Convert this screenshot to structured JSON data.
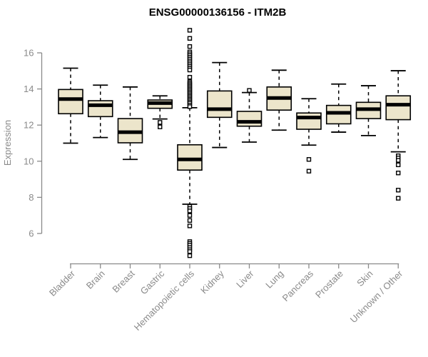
{
  "chart_data": {
    "type": "boxplot",
    "title": "ENSG00000136156 - ITM2B",
    "xlabel": "",
    "ylabel": "Expression",
    "ylim": [
      4.5,
      17.6
    ],
    "yticks": [
      6,
      8,
      10,
      12,
      14,
      16
    ],
    "grid": false,
    "legend": "none",
    "categories": [
      "Bladder",
      "Brain",
      "Breast",
      "Gastric",
      "Hematopoietic cells",
      "Kidney",
      "Liver",
      "Lung",
      "Pancreas",
      "Prostate",
      "Skin",
      "Unknown / Other"
    ],
    "boxes": [
      {
        "category": "Bladder",
        "whisker_low": 11.0,
        "q1": 12.63,
        "median": 13.44,
        "q3": 13.97,
        "whisker_high": 15.15,
        "outliers": []
      },
      {
        "category": "Brain",
        "whisker_low": 11.31,
        "q1": 12.47,
        "median": 13.1,
        "q3": 13.35,
        "whisker_high": 14.21,
        "outliers": []
      },
      {
        "category": "Breast",
        "whisker_low": 10.1,
        "q1": 11.02,
        "median": 11.61,
        "q3": 12.36,
        "whisker_high": 14.11,
        "outliers": []
      },
      {
        "category": "Gastric",
        "whisker_low": 12.34,
        "q1": 12.93,
        "median": 13.22,
        "q3": 13.39,
        "whisker_high": 13.62,
        "outliers": [
          12.15,
          11.9
        ]
      },
      {
        "category": "Hematopoietic cells",
        "whisker_low": 7.62,
        "q1": 9.51,
        "median": 10.1,
        "q3": 10.91,
        "whisker_high": 12.96,
        "outliers": [
          17.25,
          16.8,
          16.35,
          16.05,
          15.95,
          15.85,
          15.75,
          15.65,
          15.55,
          15.45,
          15.35,
          15.25,
          15.15,
          15.05,
          14.65,
          14.4,
          14.32,
          14.24,
          14.16,
          14.08,
          14.0,
          13.92,
          13.84,
          13.76,
          13.68,
          13.6,
          13.52,
          13.44,
          13.36,
          13.28,
          13.2,
          13.1,
          13.02,
          7.5,
          7.38,
          7.25,
          7.0,
          6.72,
          6.42,
          5.55,
          5.45,
          5.35,
          5.22,
          5.1,
          5.0,
          4.77
        ]
      },
      {
        "category": "Kidney",
        "whisker_low": 10.76,
        "q1": 12.43,
        "median": 12.88,
        "q3": 13.89,
        "whisker_high": 15.46,
        "outliers": []
      },
      {
        "category": "Liver",
        "whisker_low": 11.06,
        "q1": 11.94,
        "median": 12.18,
        "q3": 12.76,
        "whisker_high": 13.8,
        "outliers": [
          13.92
        ]
      },
      {
        "category": "Lung",
        "whisker_low": 11.72,
        "q1": 12.83,
        "median": 13.5,
        "q3": 14.11,
        "whisker_high": 15.04,
        "outliers": []
      },
      {
        "category": "Pancreas",
        "whisker_low": 10.89,
        "q1": 11.77,
        "median": 12.42,
        "q3": 12.67,
        "whisker_high": 13.46,
        "outliers": [
          10.1,
          9.45
        ]
      },
      {
        "category": "Prostate",
        "whisker_low": 11.61,
        "q1": 12.07,
        "median": 12.68,
        "q3": 13.09,
        "whisker_high": 14.27,
        "outliers": []
      },
      {
        "category": "Skin",
        "whisker_low": 11.42,
        "q1": 12.36,
        "median": 12.88,
        "q3": 13.26,
        "whisker_high": 14.18,
        "outliers": []
      },
      {
        "category": "Unknown / Other",
        "whisker_low": 10.52,
        "q1": 12.3,
        "median": 13.13,
        "q3": 13.62,
        "whisker_high": 15.01,
        "outliers": [
          10.3,
          10.18,
          10.05,
          9.8,
          9.35,
          8.4,
          7.95
        ]
      }
    ],
    "colors": {
      "box_fill": "#ECE5CB",
      "box_border": "#000000",
      "median": "#000000",
      "whisker": "#000000",
      "outlier_stroke": "#000000",
      "outlier_fill": "#ffffff",
      "axis": "#8a8a8a",
      "tick_label": "#8a8a8a",
      "title": "#000000",
      "background": "#ffffff"
    }
  }
}
